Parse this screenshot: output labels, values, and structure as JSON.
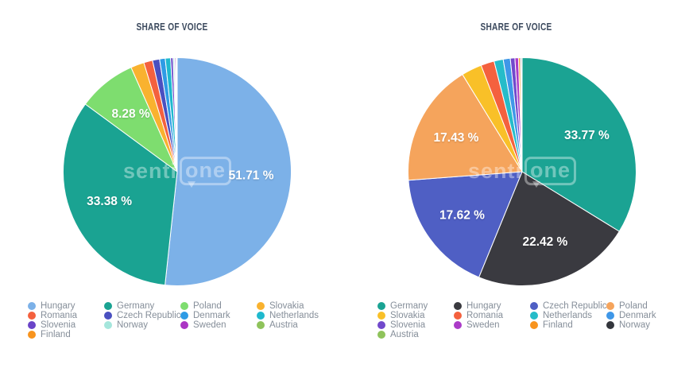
{
  "page": {
    "background": "#ffffff"
  },
  "watermark": {
    "part1": "senti",
    "part2": "one"
  },
  "theme": {
    "title_color": "#3C4A5E",
    "legend_text_color": "#858E99",
    "slice_label_color": "#ffffff",
    "slice_border_color": "#ffffff"
  },
  "chart_data": [
    {
      "type": "pie",
      "title": "SHARE OF VOICE",
      "unit": "%",
      "start_angle_deg": 0,
      "direction": "clockwise",
      "label_threshold_pct": 5,
      "legend_position": "bottom",
      "legend_columns": 4,
      "slices": [
        {
          "label": "Hungary",
          "value": 51.71,
          "color": "#7CB1E8"
        },
        {
          "label": "Germany",
          "value": 33.38,
          "color": "#1AA392"
        },
        {
          "label": "Poland",
          "value": 8.28,
          "color": "#7EDD6F"
        },
        {
          "label": "Slovakia",
          "value": 1.9,
          "color": "#F9B22F",
          "approx": true
        },
        {
          "label": "Romania",
          "value": 1.25,
          "color": "#F4613E",
          "approx": true
        },
        {
          "label": "Czech Republic",
          "value": 1.0,
          "color": "#4A50C0",
          "approx": true
        },
        {
          "label": "Denmark",
          "value": 0.8,
          "color": "#2E9BE5",
          "approx": true
        },
        {
          "label": "Netherlands",
          "value": 0.75,
          "color": "#1FB9CE",
          "approx": true
        },
        {
          "label": "Slovenia",
          "value": 0.35,
          "color": "#6A44C8",
          "approx": true
        },
        {
          "label": "Norway",
          "value": 0.2,
          "color": "#A5E6DC",
          "approx": true
        },
        {
          "label": "Sweden",
          "value": 0.15,
          "color": "#AB35C4",
          "approx": true
        },
        {
          "label": "Austria",
          "value": 0.13,
          "color": "#8FC35B",
          "approx": true
        },
        {
          "label": "Finland",
          "value": 0.1,
          "color": "#F8941E",
          "approx": true
        }
      ]
    },
    {
      "type": "pie",
      "title": "SHARE OF VOICE",
      "unit": "%",
      "start_angle_deg": 0,
      "direction": "clockwise",
      "label_threshold_pct": 5,
      "legend_position": "bottom",
      "legend_columns": 4,
      "slices": [
        {
          "label": "Germany",
          "value": 33.77,
          "color": "#1BA393"
        },
        {
          "label": "Hungary",
          "value": 22.42,
          "color": "#3A3A40"
        },
        {
          "label": "Czech Republic",
          "value": 17.62,
          "color": "#4F5FC4"
        },
        {
          "label": "Poland",
          "value": 17.43,
          "color": "#F5A45C"
        },
        {
          "label": "Slovakia",
          "value": 2.9,
          "color": "#F9C028",
          "approx": true
        },
        {
          "label": "Romania",
          "value": 1.9,
          "color": "#F4613E",
          "approx": true
        },
        {
          "label": "Netherlands",
          "value": 1.3,
          "color": "#26BCC9",
          "approx": true
        },
        {
          "label": "Denmark",
          "value": 1.0,
          "color": "#3F97E8",
          "approx": true
        },
        {
          "label": "Slovenia",
          "value": 0.65,
          "color": "#7149CC",
          "approx": true
        },
        {
          "label": "Sweden",
          "value": 0.5,
          "color": "#AB3BC8",
          "approx": true
        },
        {
          "label": "Finland",
          "value": 0.25,
          "color": "#F8941E",
          "approx": true
        },
        {
          "label": "Norway",
          "value": 0.15,
          "color": "#33363C",
          "approx": true
        },
        {
          "label": "Austria",
          "value": 0.11,
          "color": "#8FC35B",
          "approx": true
        }
      ]
    }
  ]
}
